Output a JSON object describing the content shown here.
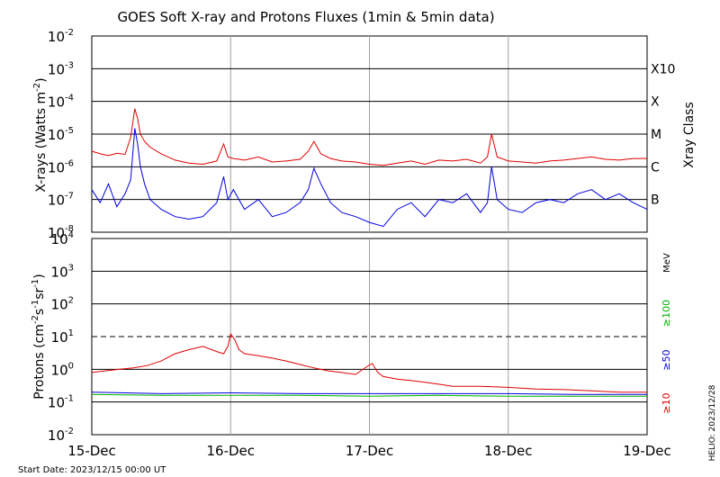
{
  "chart_data": [
    {
      "type": "line",
      "title": "GOES Soft X-ray and Protons Fluxes   (1min & 5min data)",
      "ylabel": "X-rays (Watts m^-2)",
      "ylabel_parts": [
        "X-rays (Watts m",
        "-2",
        ")"
      ],
      "y_scale": "log",
      "ylim": [
        1e-08,
        0.01
      ],
      "y_ticks": [
        {
          "base": "10",
          "exp": "-2",
          "value": 0.01
        },
        {
          "base": "10",
          "exp": "-3",
          "value": 0.001
        },
        {
          "base": "10",
          "exp": "-4",
          "value": 0.0001
        },
        {
          "base": "10",
          "exp": "-5",
          "value": 1e-05
        },
        {
          "base": "10",
          "exp": "-6",
          "value": 1e-06
        },
        {
          "base": "10",
          "exp": "-7",
          "value": 1e-07
        },
        {
          "base": "10",
          "exp": "-8",
          "value": 1e-08
        }
      ],
      "right_axis": {
        "label": "Xray Class",
        "classes": [
          {
            "label": "X10",
            "value": 0.001
          },
          {
            "label": "X",
            "value": 0.0001
          },
          {
            "label": "M",
            "value": 1e-05
          },
          {
            "label": "C",
            "value": 1e-06
          },
          {
            "label": "B",
            "value": 1e-07
          }
        ]
      },
      "grid": "horizontal at class boundaries, vertical at day boundaries",
      "series": [
        {
          "color": "#e00000",
          "x": [
            0,
            0.06,
            0.12,
            0.18,
            0.24,
            0.28,
            0.31,
            0.33,
            0.35,
            0.38,
            0.42,
            0.5,
            0.6,
            0.7,
            0.8,
            0.9,
            0.95,
            0.98,
            1.02,
            1.1,
            1.2,
            1.3,
            1.4,
            1.5,
            1.56,
            1.6,
            1.65,
            1.72,
            1.8,
            1.9,
            2.0,
            2.1,
            2.2,
            2.3,
            2.4,
            2.5,
            2.6,
            2.7,
            2.8,
            2.85,
            2.88,
            2.92,
            3.0,
            3.1,
            3.2,
            3.3,
            3.4,
            3.5,
            3.6,
            3.7,
            3.8,
            3.9,
            4.0
          ],
          "y": [
            3e-06,
            2.5e-06,
            2.2e-06,
            2.6e-06,
            2.4e-06,
            8e-06,
            6e-05,
            3e-05,
            1e-05,
            6e-06,
            4e-06,
            2.5e-06,
            1.6e-06,
            1.3e-06,
            1.2e-06,
            1.5e-06,
            5e-06,
            2e-06,
            1.8e-06,
            1.6e-06,
            2e-06,
            1.4e-06,
            1.5e-06,
            1.7e-06,
            3e-06,
            6e-06,
            2.5e-06,
            1.8e-06,
            1.5e-06,
            1.4e-06,
            1.2e-06,
            1.1e-06,
            1.3e-06,
            1.5e-06,
            1.2e-06,
            1.6e-06,
            1.5e-06,
            1.7e-06,
            1.3e-06,
            2e-06,
            1e-05,
            2e-06,
            1.5e-06,
            1.4e-06,
            1.3e-06,
            1.5e-06,
            1.6e-06,
            1.8e-06,
            2e-06,
            1.7e-06,
            1.6e-06,
            1.8e-06,
            1.8e-06
          ]
        },
        {
          "color": "#0000e0",
          "x": [
            0,
            0.06,
            0.12,
            0.18,
            0.24,
            0.28,
            0.31,
            0.33,
            0.35,
            0.38,
            0.42,
            0.5,
            0.6,
            0.7,
            0.8,
            0.9,
            0.95,
            0.98,
            1.02,
            1.1,
            1.2,
            1.3,
            1.4,
            1.5,
            1.56,
            1.6,
            1.65,
            1.72,
            1.8,
            1.9,
            2.0,
            2.1,
            2.2,
            2.3,
            2.4,
            2.5,
            2.6,
            2.7,
            2.8,
            2.85,
            2.88,
            2.92,
            3.0,
            3.1,
            3.2,
            3.3,
            3.4,
            3.5,
            3.6,
            3.7,
            3.8,
            3.9,
            4.0
          ],
          "y": [
            2e-07,
            8e-08,
            3e-07,
            6e-08,
            1.5e-07,
            4e-07,
            1.5e-05,
            5e-06,
            1e-06,
            3e-07,
            1e-07,
            5e-08,
            3e-08,
            2.5e-08,
            3e-08,
            8e-08,
            5e-07,
            1e-07,
            2e-07,
            5e-08,
            1e-07,
            3e-08,
            4e-08,
            8e-08,
            2e-07,
            9e-07,
            3e-07,
            8e-08,
            4e-08,
            3e-08,
            2e-08,
            1.5e-08,
            5e-08,
            8e-08,
            3e-08,
            1e-07,
            8e-08,
            1.5e-07,
            4e-08,
            8e-08,
            1e-06,
            1e-07,
            5e-08,
            4e-08,
            8e-08,
            1e-07,
            8e-08,
            1.5e-07,
            2e-07,
            1e-07,
            1.5e-07,
            8e-08,
            5e-08
          ]
        }
      ]
    },
    {
      "type": "line",
      "ylabel": "Protons (cm^-2 s^-1 sr^-1)",
      "ylabel_parts": [
        "Protons (cm",
        "-2",
        "s",
        "-1",
        "sr",
        "-1",
        ")"
      ],
      "y_scale": "log",
      "ylim": [
        0.01,
        10000
      ],
      "y_ticks": [
        {
          "base": "10",
          "exp": "4",
          "value": 10000
        },
        {
          "base": "10",
          "exp": "3",
          "value": 1000
        },
        {
          "base": "10",
          "exp": "2",
          "value": 100
        },
        {
          "base": "10",
          "exp": "1",
          "value": 10
        },
        {
          "base": "10",
          "exp": "0",
          "value": 1
        },
        {
          "base": "10",
          "exp": "-1",
          "value": 0.1
        },
        {
          "base": "10",
          "exp": "-2",
          "value": 0.01
        }
      ],
      "threshold_line": {
        "value": 10,
        "style": "dashed"
      },
      "right_axis": {
        "unit_label": "MeV",
        "legend": [
          {
            "label": "≥100",
            "color": "#00b000"
          },
          {
            "label": "≥50",
            "color": "#0000e0"
          },
          {
            "label": "≥10",
            "color": "#e00000"
          }
        ]
      },
      "series": [
        {
          "color": "#e00000",
          "x": [
            0,
            0.1,
            0.2,
            0.3,
            0.4,
            0.5,
            0.6,
            0.7,
            0.8,
            0.9,
            0.95,
            0.98,
            1.0,
            1.03,
            1.06,
            1.1,
            1.2,
            1.3,
            1.4,
            1.5,
            1.6,
            1.7,
            1.8,
            1.9,
            1.98,
            2.02,
            2.06,
            2.1,
            2.2,
            2.3,
            2.4,
            2.5,
            2.6,
            2.8,
            3.0,
            3.2,
            3.4,
            3.6,
            3.8,
            4.0
          ],
          "y": [
            0.8,
            0.9,
            1.0,
            1.1,
            1.3,
            1.8,
            3,
            4,
            5,
            3.5,
            3,
            5,
            12,
            8,
            4,
            3,
            2.6,
            2.2,
            1.8,
            1.4,
            1.1,
            0.9,
            0.8,
            0.7,
            1.2,
            1.5,
            0.8,
            0.6,
            0.5,
            0.45,
            0.4,
            0.35,
            0.3,
            0.3,
            0.28,
            0.25,
            0.24,
            0.22,
            0.2,
            0.2
          ]
        },
        {
          "color": "#0000e0",
          "x": [
            0,
            0.5,
            1.0,
            1.5,
            2.0,
            2.5,
            3.0,
            3.5,
            4.0
          ],
          "y": [
            0.2,
            0.18,
            0.19,
            0.18,
            0.18,
            0.18,
            0.18,
            0.17,
            0.17
          ]
        },
        {
          "color": "#00b000",
          "x": [
            0,
            0.5,
            1.0,
            1.5,
            2.0,
            2.5,
            3.0,
            3.5,
            4.0
          ],
          "y": [
            0.17,
            0.16,
            0.16,
            0.16,
            0.15,
            0.16,
            0.15,
            0.15,
            0.15
          ]
        }
      ]
    }
  ],
  "x_ticks": [
    {
      "label": "15-Dec",
      "value": 0
    },
    {
      "label": "16-Dec",
      "value": 1
    },
    {
      "label": "17-Dec",
      "value": 2
    },
    {
      "label": "18-Dec",
      "value": 3
    },
    {
      "label": "19-Dec",
      "value": 4
    }
  ],
  "xlim": [
    0,
    4
  ],
  "footer": {
    "start_date": "Start Date: 2023/12/15 00:00 UT",
    "credit": "HELIO: 2023/12/28"
  }
}
